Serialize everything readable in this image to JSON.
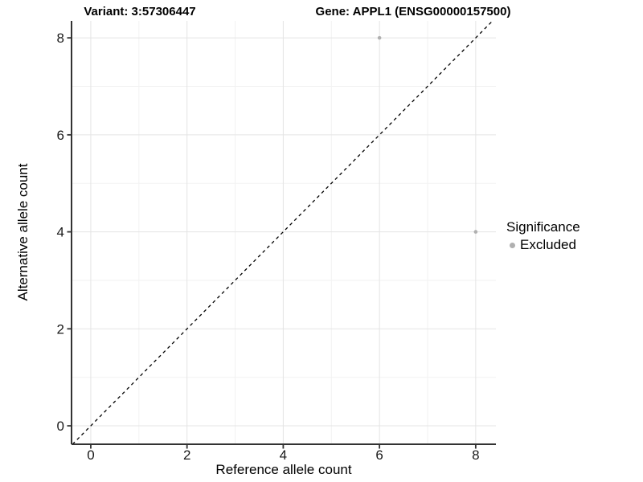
{
  "titles": {
    "variant": "Variant: 3:57306447",
    "gene": "Gene: APPL1 (ENSG00000157500)"
  },
  "axes": {
    "x_label": "Reference allele count",
    "y_label": "Alternative allele count"
  },
  "legend": {
    "title": "Significance",
    "items": [
      {
        "label": "Excluded",
        "color": "#b0b0b0"
      }
    ]
  },
  "chart_data": {
    "type": "scatter",
    "title": "Variant: 3:57306447 | Gene: APPL1 (ENSG00000157500)",
    "xlabel": "Reference allele count",
    "ylabel": "Alternative allele count",
    "xlim": [
      -0.4,
      8.42
    ],
    "ylim": [
      -0.38,
      8.35
    ],
    "x_ticks": [
      0,
      2,
      4,
      6,
      8
    ],
    "y_ticks": [
      0,
      2,
      4,
      6,
      8
    ],
    "x_minor": [
      1,
      3,
      5,
      7
    ],
    "y_minor": [
      1,
      3,
      5,
      7
    ],
    "grid": true,
    "legend_position": "right",
    "series": [
      {
        "name": "Excluded",
        "color": "#b0b0b0",
        "points": [
          {
            "x": 6,
            "y": 8
          },
          {
            "x": 8,
            "y": 4
          }
        ]
      }
    ],
    "reference_line": {
      "type": "identity",
      "style": "dashed",
      "color": "#000000"
    },
    "colors": {
      "grid_major": "#e4e4e4",
      "grid_minor": "#f2f2f2",
      "axis": "#333333",
      "text": "#1a1a1a",
      "background": "#ffffff"
    }
  }
}
